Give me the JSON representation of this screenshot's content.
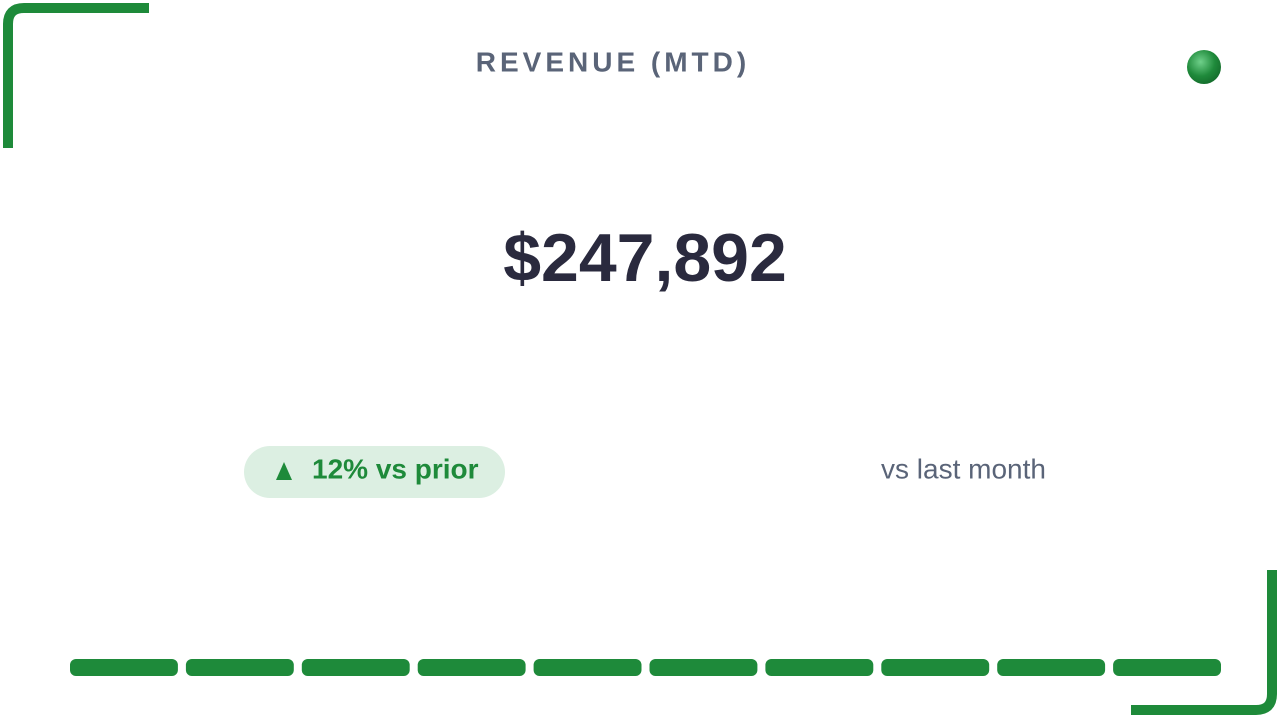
{
  "card": {
    "title": "REVENUE (MTD)",
    "value": "$247,892",
    "badge": "12% vs prior",
    "comparison": "vs last month"
  }
}
